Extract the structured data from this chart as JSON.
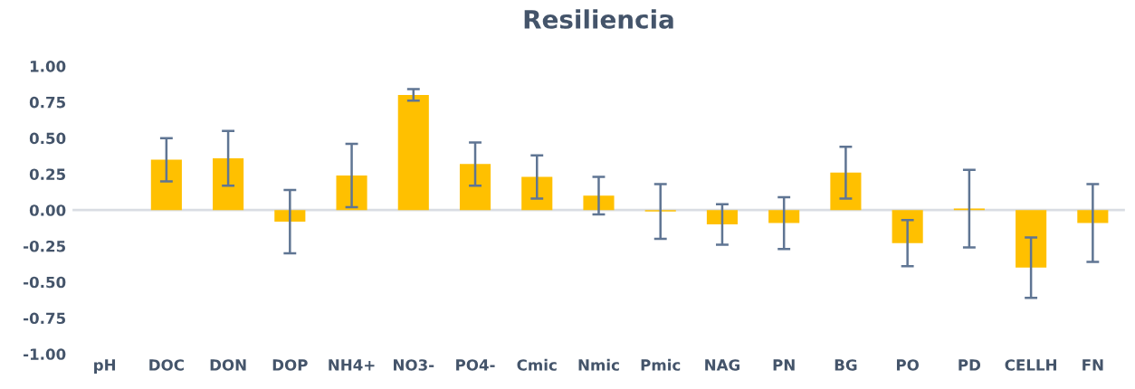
{
  "chart_data": {
    "type": "bar",
    "title": "Resiliencia",
    "categories": [
      "pH",
      "DOC",
      "DON",
      "DOP",
      "NH4+",
      "NO3-",
      "PO4-",
      "Cmic",
      "Nmic",
      "Pmic",
      "NAG",
      "PN",
      "BG",
      "PO",
      "PD",
      "CELLH",
      "FN"
    ],
    "series": [
      {
        "color": "#ffc000",
        "values": [
          0.0,
          0.35,
          0.36,
          -0.08,
          0.24,
          0.8,
          0.32,
          0.23,
          0.1,
          -0.01,
          -0.1,
          -0.09,
          0.26,
          -0.23,
          0.01,
          -0.4,
          -0.09
        ],
        "errors": [
          null,
          0.15,
          0.19,
          0.22,
          0.22,
          0.04,
          0.15,
          0.15,
          0.13,
          0.19,
          0.14,
          0.18,
          0.18,
          0.16,
          0.27,
          0.21,
          0.27
        ]
      }
    ],
    "ylim": [
      -1.0,
      1.0
    ],
    "yticks": [
      {
        "value": 1.0,
        "label": "1.00"
      },
      {
        "value": 0.75,
        "label": "0.75"
      },
      {
        "value": 0.5,
        "label": "0.50"
      },
      {
        "value": 0.25,
        "label": "0.25"
      },
      {
        "value": 0.0,
        "label": "0.00"
      },
      {
        "value": -0.25,
        "label": "-0.25"
      },
      {
        "value": -0.5,
        "label": "-0.50"
      },
      {
        "value": -0.75,
        "label": "-0.75"
      },
      {
        "value": -1.0,
        "label": "-1.00"
      }
    ],
    "legend": false
  }
}
